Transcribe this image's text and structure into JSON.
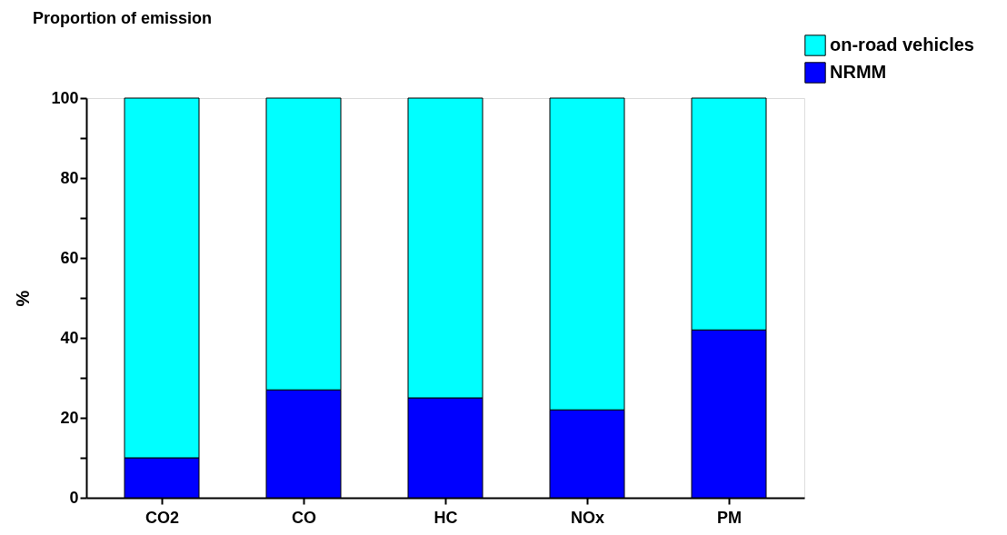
{
  "chart_data": {
    "type": "bar",
    "title": "Proportion of emission",
    "ylabel": "%",
    "categories": [
      "CO2",
      "CO",
      "HC",
      "NOx",
      "PM"
    ],
    "stacked": true,
    "series": [
      {
        "name": "NRMM",
        "color": "#0000ff",
        "values": [
          10,
          27,
          25,
          22,
          42
        ]
      },
      {
        "name": "on-road vehicles",
        "color": "#00ffff",
        "values": [
          90,
          73,
          75,
          78,
          58
        ]
      }
    ],
    "ylim": [
      0,
      100
    ],
    "yticks": [
      0,
      {
        "value": 10,
        "label": null
      },
      20,
      {
        "value": 30,
        "label": null
      },
      40,
      {
        "value": 50,
        "label": null
      },
      60,
      {
        "value": 70,
        "label": null
      },
      80,
      {
        "value": 90,
        "label": null
      },
      100
    ],
    "grid": false,
    "legend": "top right"
  }
}
